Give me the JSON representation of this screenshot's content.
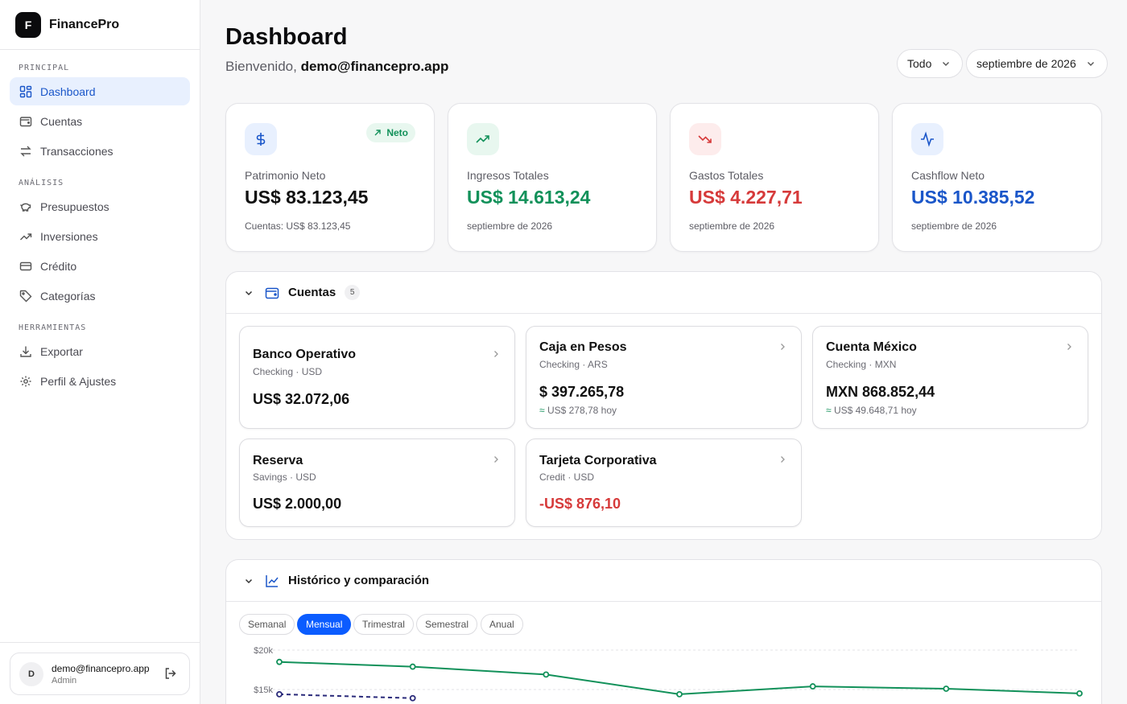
{
  "app": {
    "logo_letter": "F",
    "name": "FinancePro"
  },
  "sidebar": {
    "sections": [
      "PRINCIPAL",
      "ANÁLISIS",
      "HERRAMIENTAS"
    ],
    "items": [
      {
        "label": "Dashboard",
        "icon": "dashboard-icon"
      },
      {
        "label": "Cuentas",
        "icon": "wallet-icon"
      },
      {
        "label": "Transacciones",
        "icon": "arrows-icon"
      },
      {
        "label": "Presupuestos",
        "icon": "piggy-bank-icon"
      },
      {
        "label": "Inversiones",
        "icon": "trending-up-icon"
      },
      {
        "label": "Crédito",
        "icon": "credit-card-icon"
      },
      {
        "label": "Categorías",
        "icon": "tag-icon"
      },
      {
        "label": "Exportar",
        "icon": "download-icon"
      },
      {
        "label": "Perfil & Ajustes",
        "icon": "gear-icon"
      }
    ],
    "user": {
      "initial": "D",
      "email": "demo@financepro.app",
      "role": "Admin"
    }
  },
  "header": {
    "title": "Dashboard",
    "welcome_prefix": "Bienvenido,",
    "welcome_user": "demo@financepro.app",
    "filter": "Todo",
    "period": "septiembre de 2026"
  },
  "kpis": [
    {
      "label": "Patrimonio Neto",
      "value": "US$ 83.123,45",
      "sub": "Cuentas: US$ 83.123,45",
      "badge": "Neto",
      "color": "#111111",
      "icon": "dollar-icon"
    },
    {
      "label": "Ingresos Totales",
      "value": "US$ 14.613,24",
      "sub": "septiembre de 2026",
      "color": "#12915a",
      "icon": "trending-up-icon"
    },
    {
      "label": "Gastos Totales",
      "value": "US$ 4.227,71",
      "sub": "septiembre de 2026",
      "color": "#d63a3a",
      "icon": "trending-down-icon"
    },
    {
      "label": "Cashflow Neto",
      "value": "US$ 10.385,52",
      "sub": "septiembre de 2026",
      "color": "#1a56c9",
      "icon": "activity-icon"
    }
  ],
  "accounts": {
    "title": "Cuentas",
    "count": "5",
    "items": [
      {
        "name": "Banco Operativo",
        "type": "Checking · USD",
        "balance": "US$ 32.072,06"
      },
      {
        "name": "Caja en Pesos",
        "type": "Checking · ARS",
        "balance": "$ 397.265,78",
        "approx": "≈",
        "converted": "US$ 278,78 hoy"
      },
      {
        "name": "Cuenta México",
        "type": "Checking · MXN",
        "balance": "MXN 868.852,44",
        "approx": "≈",
        "converted": "US$ 49.648,71 hoy"
      },
      {
        "name": "Reserva",
        "type": "Savings · USD",
        "balance": "US$ 2.000,00"
      },
      {
        "name": "Tarjeta Corporativa",
        "type": "Credit · USD",
        "balance": "-US$ 876,10",
        "negative": true
      }
    ]
  },
  "history": {
    "title": "Histórico y comparación",
    "periods": [
      "Semanal",
      "Mensual",
      "Trimestral",
      "Semestral",
      "Anual"
    ],
    "active_period": "Mensual"
  },
  "chart_data": {
    "type": "line",
    "ytick_labels": [
      "$20k",
      "$15k"
    ],
    "series": [
      {
        "style": "solid",
        "color": "#12915a",
        "values": [
          18500,
          17900,
          16900,
          14400,
          15400,
          15100,
          14500
        ]
      },
      {
        "style": "dashed",
        "color": "#2a2a7a",
        "values": [
          14400,
          13900
        ]
      }
    ]
  }
}
